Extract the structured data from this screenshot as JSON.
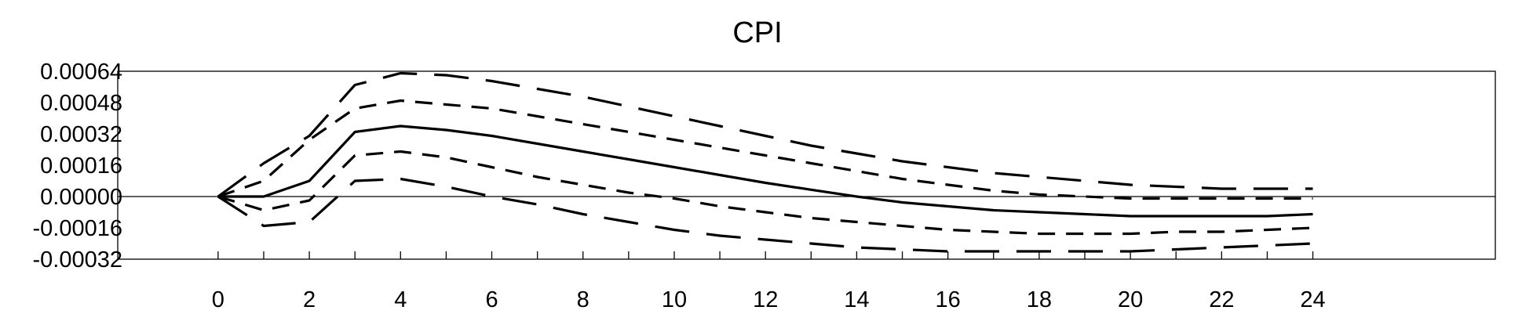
{
  "chart_data": {
    "type": "line",
    "title": "CPI",
    "xlabel": "",
    "ylabel": "",
    "xlim": [
      -2.2,
      28
    ],
    "ylim": [
      -0.00032,
      0.00064
    ],
    "x_ticks": [
      "0",
      "2",
      "4",
      "6",
      "8",
      "10",
      "12",
      "14",
      "16",
      "18",
      "20",
      "22",
      "24"
    ],
    "y_ticks": [
      "0.00064",
      "0.00048",
      "0.00032",
      "0.00016",
      "0.00000",
      "-0.00016",
      "-0.00032"
    ],
    "grid": false,
    "x": [
      0,
      1,
      2,
      3,
      4,
      5,
      6,
      7,
      8,
      9,
      10,
      11,
      12,
      13,
      14,
      15,
      16,
      17,
      18,
      19,
      20,
      21,
      22,
      23,
      24
    ],
    "series": [
      {
        "style": "solid",
        "values": [
          0.0,
          0.0,
          8e-05,
          0.00033,
          0.00036,
          0.00034,
          0.00031,
          0.00027,
          0.00023,
          0.00019,
          0.00015,
          0.00011,
          7e-05,
          3.5e-05,
          0.0,
          -3e-05,
          -5e-05,
          -7e-05,
          -8e-05,
          -9e-05,
          -0.0001,
          -0.0001,
          -0.0001,
          -0.0001,
          -9e-05
        ]
      },
      {
        "style": "short-dash",
        "values": [
          0.0,
          8e-05,
          0.00029,
          0.00045,
          0.00049,
          0.00047,
          0.00045,
          0.00041,
          0.00037,
          0.00033,
          0.00029,
          0.00025,
          0.00021,
          0.00017,
          0.00013,
          9e-05,
          6e-05,
          3e-05,
          1e-05,
          0.0,
          -1e-05,
          -1e-05,
          -1e-05,
          -1e-05,
          -1e-05
        ]
      },
      {
        "style": "short-dash",
        "values": [
          0.0,
          -7e-05,
          -2e-05,
          0.00021,
          0.00023,
          0.0002,
          0.00015,
          0.0001,
          6e-05,
          2e-05,
          -1e-05,
          -5e-05,
          -8e-05,
          -0.00011,
          -0.00013,
          -0.00015,
          -0.00017,
          -0.00018,
          -0.00019,
          -0.00019,
          -0.00019,
          -0.00018,
          -0.00018,
          -0.00017,
          -0.00016
        ]
      },
      {
        "style": "long-dash",
        "values": [
          0.0,
          0.00017,
          0.00031,
          0.00057,
          0.00063,
          0.00062,
          0.00059,
          0.00055,
          0.00051,
          0.00046,
          0.00041,
          0.00036,
          0.00031,
          0.00026,
          0.00022,
          0.00018,
          0.00015,
          0.00012,
          0.0001,
          8e-05,
          6e-05,
          5e-05,
          4e-05,
          4e-05,
          4e-05
        ]
      },
      {
        "style": "long-dash",
        "values": [
          0.0,
          -0.00015,
          -0.00013,
          8e-05,
          9e-05,
          5e-05,
          0.0,
          -4e-05,
          -9e-05,
          -0.00013,
          -0.00017,
          -0.0002,
          -0.00022,
          -0.00024,
          -0.00026,
          -0.00027,
          -0.00028,
          -0.00028,
          -0.00028,
          -0.00028,
          -0.00028,
          -0.00027,
          -0.00026,
          -0.00025,
          -0.00024
        ]
      }
    ]
  }
}
